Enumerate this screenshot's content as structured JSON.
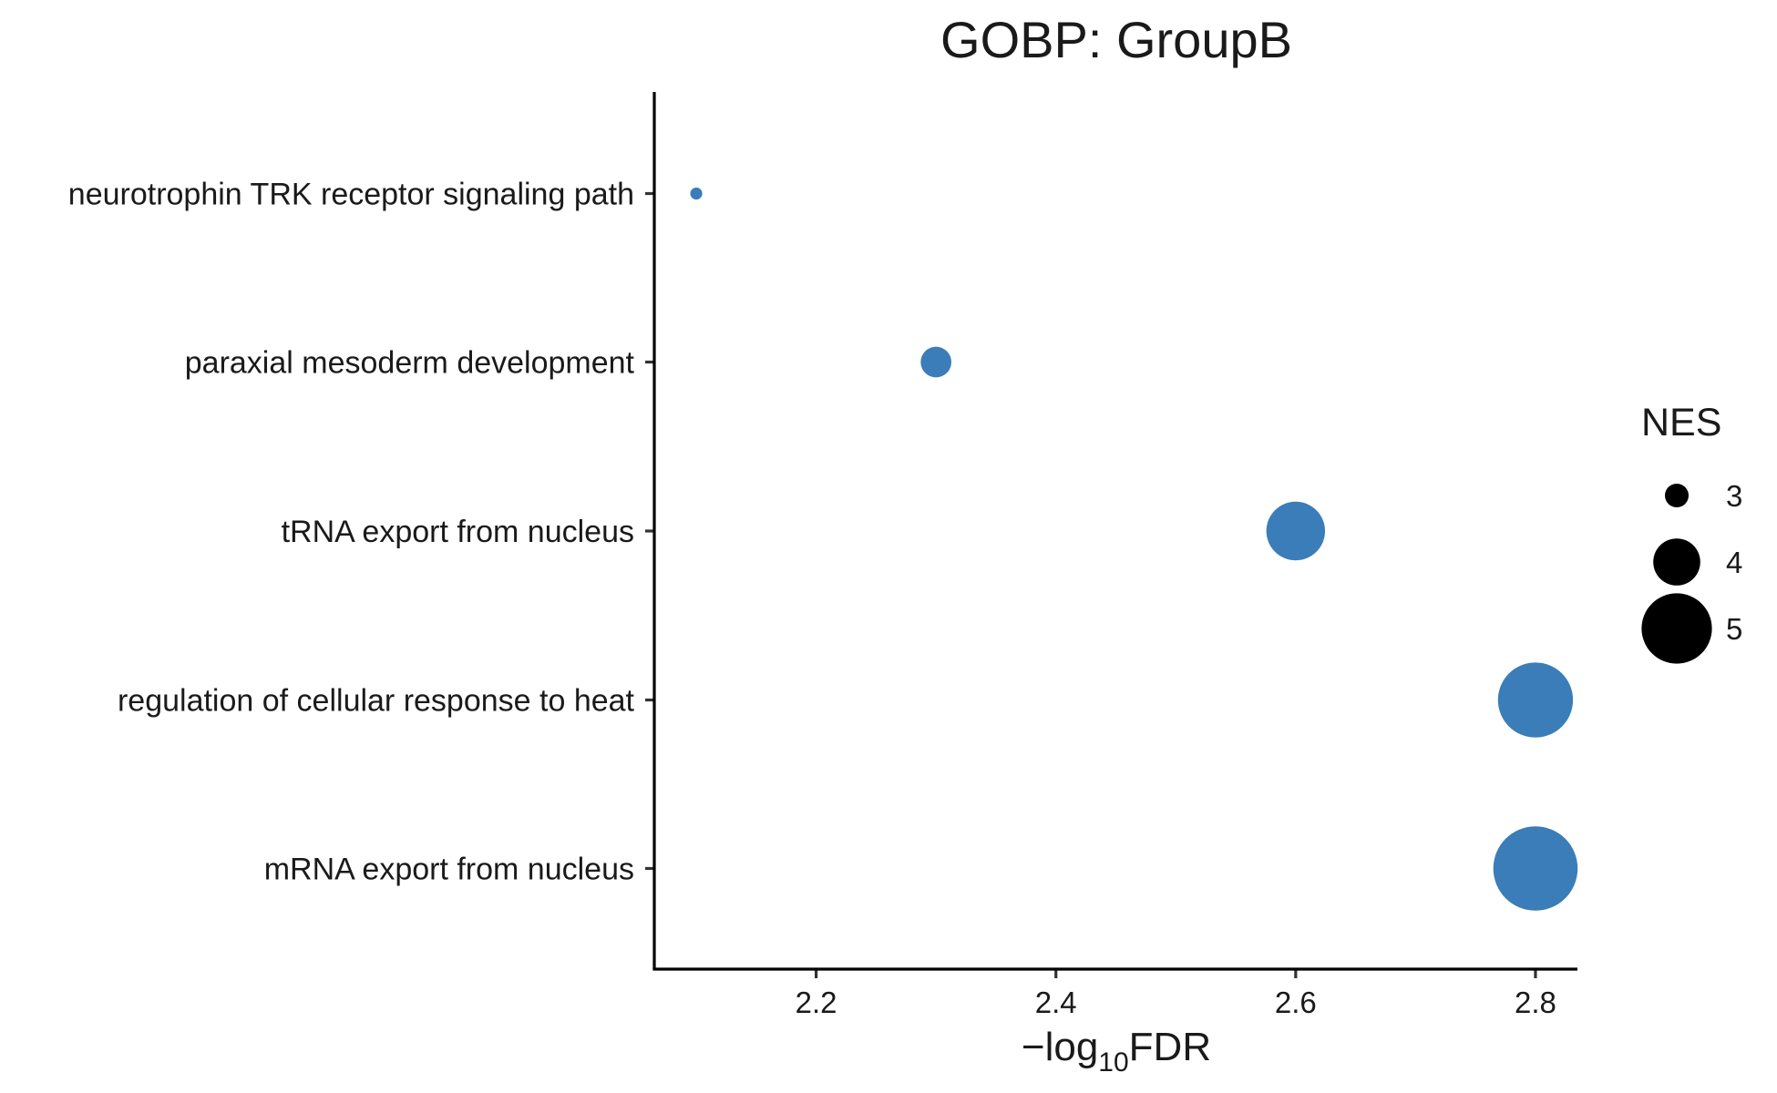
{
  "chart_data": {
    "type": "scatter",
    "title": "GOBP: GroupB",
    "xlabel": {
      "prefix": "−log",
      "subscript": "10",
      "suffix": "FDR"
    },
    "ylabel": "",
    "categories": [
      "neurotrophin TRK receptor signaling path",
      "paraxial mesoderm development",
      "tRNA export from nucleus",
      "regulation of cellular response to heat",
      "mRNA export from nucleus"
    ],
    "series": [
      {
        "points": [
          {
            "category": "neurotrophin TRK receptor signaling path",
            "x": 2.1,
            "nes": 2.5
          },
          {
            "category": "paraxial mesoderm development",
            "x": 2.3,
            "nes": 3.3
          },
          {
            "category": "tRNA export from nucleus",
            "x": 2.6,
            "nes": 4.5
          },
          {
            "category": "regulation of cellular response to heat",
            "x": 2.8,
            "nes": 5.2
          },
          {
            "category": "mRNA export from nucleus",
            "x": 2.8,
            "nes": 5.6
          }
        ],
        "color": "#3a7db8"
      }
    ],
    "xlim": [
      2.065,
      2.835
    ],
    "xticks": [
      2.2,
      2.4,
      2.6,
      2.8
    ],
    "xtick_labels": [
      "2.2",
      "2.4",
      "2.6",
      "2.8"
    ],
    "size_legend": {
      "title": "NES",
      "values": [
        3,
        4,
        5
      ],
      "labels": [
        "3",
        "4",
        "5"
      ],
      "color": "#000000",
      "placement": "right"
    },
    "grid": false
  }
}
